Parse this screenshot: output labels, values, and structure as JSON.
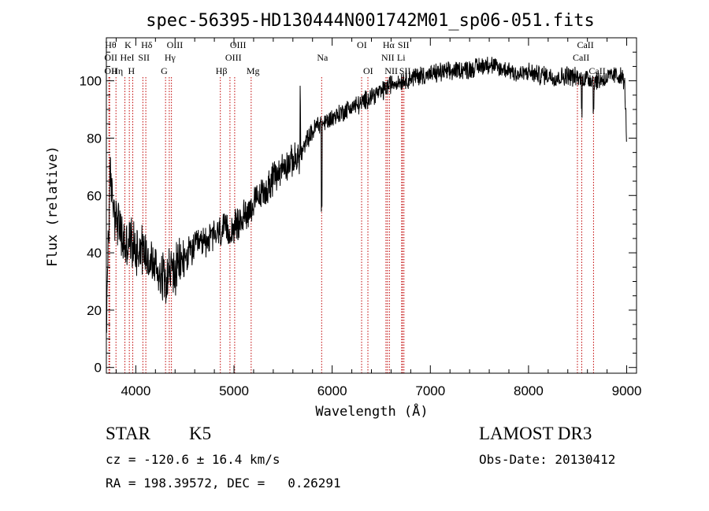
{
  "chart_data": {
    "type": "line",
    "title": "spec-56395-HD130444N001742M01_sp06-051.fits",
    "xlabel": "Wavelength (Å)",
    "ylabel": "Flux (relative)",
    "xlim": [
      3700,
      9100
    ],
    "ylim": [
      -2,
      115
    ],
    "xticks": [
      4000,
      5000,
      6000,
      7000,
      8000,
      9000
    ],
    "xtick_labels": [
      "4000",
      "5000",
      "6000",
      "7000",
      "8000",
      "9000"
    ],
    "yticks": [
      0,
      20,
      40,
      60,
      80,
      100
    ],
    "ytick_labels": [
      "0",
      "20",
      "40",
      "60",
      "80",
      "100"
    ],
    "spectrum_anchors": {
      "x": [
        3700,
        3710,
        3740,
        3780,
        3820,
        3860,
        3900,
        3950,
        4000,
        4050,
        4100,
        4150,
        4200,
        4250,
        4300,
        4350,
        4400,
        4450,
        4500,
        4550,
        4600,
        4650,
        4700,
        4750,
        4800,
        4850,
        4900,
        4950,
        5000,
        5050,
        5100,
        5150,
        5200,
        5250,
        5300,
        5350,
        5400,
        5450,
        5500,
        5550,
        5600,
        5650,
        5700,
        5750,
        5800,
        5850,
        5900,
        5950,
        6000,
        6100,
        6200,
        6300,
        6400,
        6500,
        6600,
        6700,
        6800,
        6900,
        7000,
        7100,
        7200,
        7300,
        7400,
        7500,
        7600,
        7700,
        7800,
        7900,
        8000,
        8100,
        8200,
        8300,
        8400,
        8500,
        8600,
        8700,
        8800,
        8900,
        8960,
        8980,
        9000
      ],
      "y": [
        2,
        35,
        66,
        55,
        50,
        45,
        42,
        44,
        41,
        43,
        40,
        37,
        35,
        33,
        32,
        34,
        33,
        36,
        38,
        40,
        42,
        43,
        44,
        45,
        46,
        47,
        48,
        47,
        49,
        50,
        53,
        55,
        57,
        59,
        61,
        63,
        66,
        68,
        70,
        71,
        72,
        73,
        75,
        80,
        82,
        85,
        85,
        86,
        87,
        89,
        91,
        92,
        95,
        96,
        99,
        100,
        101,
        102,
        102,
        103,
        103,
        104,
        104,
        105,
        106,
        104,
        104,
        102,
        103,
        102,
        102,
        101,
        102,
        101,
        101,
        100,
        101,
        102,
        101,
        98,
        80
      ]
    },
    "line_markers": [
      {
        "wavelength": 3734,
        "label": "Hθ",
        "row": 0
      },
      {
        "wavelength": 3727,
        "label": "OII",
        "row": 1
      },
      {
        "wavelength": 3727,
        "label": "OII",
        "row": 2
      },
      {
        "wavelength": 3798,
        "label": "Hη",
        "row": 2
      },
      {
        "wavelength": 3889,
        "label": "HeI",
        "row": 1
      },
      {
        "wavelength": 3934,
        "label": "K",
        "row": 0
      },
      {
        "wavelength": 3969,
        "label": "H",
        "row": 2
      },
      {
        "wavelength": 4072,
        "label": "SII",
        "row": 1
      },
      {
        "wavelength": 4102,
        "label": "Hδ",
        "row": 0
      },
      {
        "wavelength": 4303,
        "label": "G",
        "row": 2
      },
      {
        "wavelength": 4341,
        "label": "Hγ",
        "row": 1
      },
      {
        "wavelength": 4363,
        "label": "OIII",
        "row": 0
      },
      {
        "wavelength": 4861,
        "label": "Hβ",
        "row": 2
      },
      {
        "wavelength": 4959,
        "label": "OIII",
        "row": 1
      },
      {
        "wavelength": 5007,
        "label": "OIII",
        "row": 0
      },
      {
        "wavelength": 5175,
        "label": "Mg",
        "row": 2
      },
      {
        "wavelength": 5893,
        "label": "Na",
        "row": 1
      },
      {
        "wavelength": 6300,
        "label": "OI",
        "row": 0
      },
      {
        "wavelength": 6364,
        "label": "OI",
        "row": 2
      },
      {
        "wavelength": 6548,
        "label": "NII",
        "row": 1
      },
      {
        "wavelength": 6563,
        "label": "Hα",
        "row": 0
      },
      {
        "wavelength": 6583,
        "label": "NII",
        "row": 2
      },
      {
        "wavelength": 6708,
        "label": "Li",
        "row": 1
      },
      {
        "wavelength": 6716,
        "label": "SII",
        "row": 0
      },
      {
        "wavelength": 6731,
        "label": "SII",
        "row": 2
      },
      {
        "wavelength": 8498,
        "label": "CaII",
        "row": 1
      },
      {
        "wavelength": 8542,
        "label": "CaII",
        "row": 0
      },
      {
        "wavelength": 8662,
        "label": "CaII",
        "row": 2
      }
    ]
  },
  "info": {
    "class_label": "STAR",
    "subclass": "K5",
    "survey": "LAMOST DR3",
    "cz": "cz = -120.6 ± 16.4 km/s",
    "obs_date": "Obs-Date: 20130412",
    "radec": "RA = 198.39572, DEC =   0.26291"
  },
  "colors": {
    "spectrum": "#000000",
    "marker_line": "#c00000",
    "axis": "#000000",
    "background": "#ffffff"
  }
}
